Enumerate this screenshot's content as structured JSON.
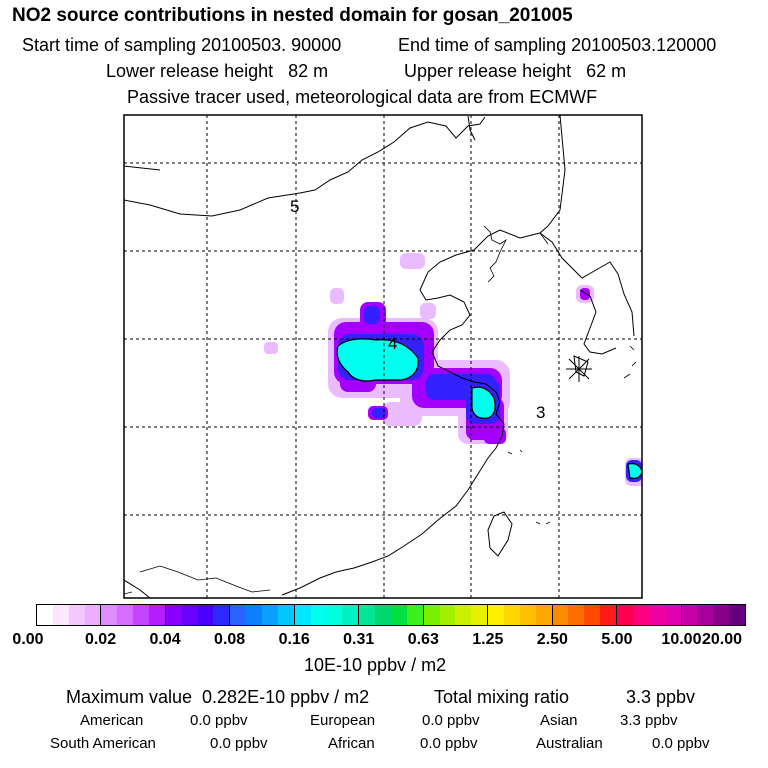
{
  "header": {
    "title": "NO2 source contributions in nested domain for gosan_201005",
    "start_time": "Start time of sampling 20100503. 90000",
    "end_time": "End time of sampling 20100503.120000",
    "lower_release": "Lower release height   82 m",
    "upper_release": "Upper release height   62 m",
    "tracer_note": "Passive tracer used, meteorological data are from ECMWF"
  },
  "map": {
    "contour_labels": [
      "5",
      "4",
      "3"
    ],
    "receptor_symbol": "✳"
  },
  "colorbar": {
    "ticks": [
      "0.00",
      "0.02",
      "0.04",
      "0.08",
      "0.16",
      "0.31",
      "0.63",
      "1.25",
      "2.50",
      "5.00",
      "10.00",
      "20.00"
    ],
    "segments": [
      [
        "#ffffff",
        "#fbe8ff",
        "#f4c8ff",
        "#eeaeff"
      ],
      [
        "#e08cff",
        "#d66dff",
        "#c544ff",
        "#b41dff"
      ],
      [
        "#8a00ff",
        "#6a00ff",
        "#4a00ff",
        "#2a2aff"
      ],
      [
        "#2a64ff",
        "#0a80ff",
        "#0aa0ff",
        "#00c8ff"
      ],
      [
        "#00e8ff",
        "#00ffee",
        "#00ffdd",
        "#00f0c0"
      ],
      [
        "#00e896",
        "#00d86e",
        "#00e040",
        "#3cf020"
      ],
      [
        "#78f000",
        "#a0f000",
        "#c8f000",
        "#e6f000"
      ],
      [
        "#fff000",
        "#ffd700",
        "#ffc000",
        "#ffa500"
      ],
      [
        "#ff8a00",
        "#ff6e00",
        "#ff4a00",
        "#ff1a1a"
      ],
      [
        "#ff0050",
        "#ff0080",
        "#f000a0",
        "#e000b0"
      ],
      [
        "#c800a8",
        "#a8009a",
        "#88008a",
        "#66007a"
      ]
    ],
    "units": "10E-10 ppbv / m2"
  },
  "summary": {
    "max_value": "Maximum value  0.282E-10 ppbv / m2",
    "total_label": "Total mixing ratio",
    "total_value": "3.3 ppbv",
    "regions": [
      {
        "label": "American",
        "value": "0.0 ppbv"
      },
      {
        "label": "European",
        "value": "0.0 ppbv"
      },
      {
        "label": "Asian",
        "value": "3.3 ppbv"
      },
      {
        "label": "South American",
        "value": "0.0 ppbv"
      },
      {
        "label": "African",
        "value": "0.0 ppbv"
      },
      {
        "label": "Australian",
        "value": "0.0 ppbv"
      }
    ]
  },
  "colors": {
    "cyan_core": "#00ffee",
    "blue_mid": "#2a2aff",
    "violet": "#9b00ff",
    "light_violet": "#e6a8ff"
  }
}
